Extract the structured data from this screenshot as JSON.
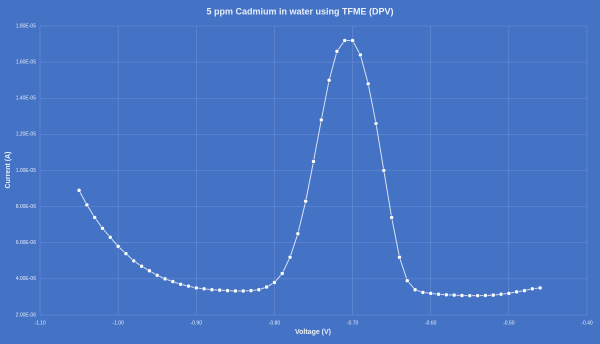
{
  "chart_data": {
    "type": "scatter",
    "title": "5 ppm Cadmium in water using TFME (DPV)",
    "x_label": "Voltage (V)",
    "y_label": "Current (A)",
    "background": "#4472c4",
    "color": "#ffffff",
    "line": true,
    "grid": true,
    "x": [
      -1.05,
      -1.04,
      -1.03,
      -1.02,
      -1.01,
      -1.0,
      -0.99,
      -0.98,
      -0.97,
      -0.96,
      -0.95,
      -0.94,
      -0.93,
      -0.92,
      -0.91,
      -0.9,
      -0.89,
      -0.88,
      -0.87,
      -0.86,
      -0.85,
      -0.84,
      -0.83,
      -0.82,
      -0.81,
      -0.8,
      -0.79,
      -0.78,
      -0.77,
      -0.76,
      -0.75,
      -0.74,
      -0.73,
      -0.72,
      -0.71,
      -0.7,
      -0.69,
      -0.68,
      -0.67,
      -0.66,
      -0.65,
      -0.64,
      -0.63,
      -0.62,
      -0.61,
      -0.6,
      -0.59,
      -0.58,
      -0.57,
      -0.56,
      -0.55,
      -0.54,
      -0.53,
      -0.52,
      -0.51,
      -0.5,
      -0.49,
      -0.48,
      -0.47,
      -0.46
    ],
    "values": [
      8.9e-06,
      8.1e-06,
      7.4e-06,
      6.8e-06,
      6.3e-06,
      5.8e-06,
      5.4e-06,
      5e-06,
      4.7e-06,
      4.45e-06,
      4.2e-06,
      4e-06,
      3.85e-06,
      3.7e-06,
      3.6e-06,
      3.5e-06,
      3.45e-06,
      3.4e-06,
      3.38e-06,
      3.35e-06,
      3.33e-06,
      3.33e-06,
      3.35e-06,
      3.4e-06,
      3.55e-06,
      3.8e-06,
      4.3e-06,
      5.2e-06,
      6.5e-06,
      8.3e-06,
      1.05e-05,
      1.28e-05,
      1.5e-05,
      1.66e-05,
      1.72e-05,
      1.72e-05,
      1.64e-05,
      1.48e-05,
      1.26e-05,
      1e-05,
      7.4e-06,
      5.2e-06,
      3.9e-06,
      3.4e-06,
      3.25e-06,
      3.2e-06,
      3.15e-06,
      3.12e-06,
      3.1e-06,
      3.08e-06,
      3.07e-06,
      3.07e-06,
      3.08e-06,
      3.1e-06,
      3.15e-06,
      3.2e-06,
      3.28e-06,
      3.35e-06,
      3.45e-06,
      3.5e-06
    ],
    "xlim": [
      -1.1,
      -0.4
    ],
    "xticks": [
      {
        "value": -1.1,
        "label": "-1.10"
      },
      {
        "value": -1.0,
        "label": "-1.00"
      },
      {
        "value": -0.9,
        "label": "-0.90"
      },
      {
        "value": -0.8,
        "label": "-0.80"
      },
      {
        "value": -0.7,
        "label": "-0.70"
      },
      {
        "value": -0.6,
        "label": "-0.60"
      },
      {
        "value": -0.5,
        "label": "-0.50"
      },
      {
        "value": -0.4,
        "label": "-0.40"
      }
    ],
    "ylim": [
      2e-06,
      1.8e-05
    ],
    "yticks": [
      {
        "value": 2e-06,
        "label": "2.00E-06"
      },
      {
        "value": 4e-06,
        "label": "4.00E-06"
      },
      {
        "value": 6e-06,
        "label": "6.00E-06"
      },
      {
        "value": 8e-06,
        "label": "8.00E-06"
      },
      {
        "value": 1e-05,
        "label": "1.00E-05"
      },
      {
        "value": 1.2e-05,
        "label": "1.20E-05"
      },
      {
        "value": 1.4e-05,
        "label": "1.40E-05"
      },
      {
        "value": 1.6e-05,
        "label": "1.60E-05"
      },
      {
        "value": 1.8e-05,
        "label": "1.80E-05"
      }
    ]
  }
}
